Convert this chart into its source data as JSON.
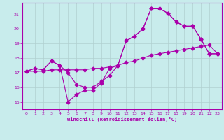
{
  "xlabel": "Windchill (Refroidissement éolien,°C)",
  "bg_color": "#c8ecec",
  "grid_color": "#b0d0d0",
  "line_color": "#aa00aa",
  "xlim": [
    -0.5,
    23.5
  ],
  "ylim": [
    14.5,
    21.8
  ],
  "xticks": [
    0,
    1,
    2,
    3,
    4,
    5,
    6,
    7,
    8,
    9,
    10,
    11,
    12,
    13,
    14,
    15,
    16,
    17,
    18,
    19,
    20,
    21,
    22,
    23
  ],
  "yticks": [
    15,
    16,
    17,
    18,
    19,
    20,
    21
  ],
  "line1_x": [
    0,
    1,
    2,
    3,
    4,
    5,
    6,
    7,
    8,
    9,
    10,
    11,
    12,
    13,
    14,
    15,
    16,
    17,
    18,
    19,
    20,
    21,
    22,
    23
  ],
  "line1_y": [
    17.1,
    17.3,
    17.2,
    17.8,
    17.5,
    17.0,
    16.2,
    16.0,
    16.0,
    16.4,
    16.8,
    17.5,
    19.2,
    19.5,
    20.0,
    21.4,
    21.4,
    21.1,
    20.5,
    20.2,
    20.2,
    19.3,
    18.3,
    18.3
  ],
  "line2_x": [
    0,
    1,
    2,
    3,
    4,
    5,
    6,
    7,
    8,
    9,
    10,
    11,
    12,
    13,
    14,
    15,
    16,
    17,
    18,
    19,
    20,
    21,
    22,
    23
  ],
  "line2_y": [
    17.1,
    17.3,
    17.2,
    17.8,
    17.5,
    15.0,
    15.5,
    15.8,
    15.8,
    16.3,
    17.3,
    17.5,
    19.2,
    19.5,
    20.0,
    21.4,
    21.4,
    21.1,
    20.5,
    20.2,
    20.2,
    19.3,
    18.3,
    18.3
  ],
  "line3_x": [
    0,
    1,
    2,
    3,
    4,
    5,
    6,
    7,
    8,
    9,
    10,
    11,
    12,
    13,
    14,
    15,
    16,
    17,
    18,
    19,
    20,
    21,
    22,
    23
  ],
  "line3_y": [
    17.1,
    17.1,
    17.1,
    17.2,
    17.2,
    17.2,
    17.2,
    17.2,
    17.3,
    17.3,
    17.4,
    17.5,
    17.7,
    17.8,
    18.0,
    18.2,
    18.3,
    18.4,
    18.5,
    18.6,
    18.7,
    18.8,
    18.9,
    18.3
  ]
}
